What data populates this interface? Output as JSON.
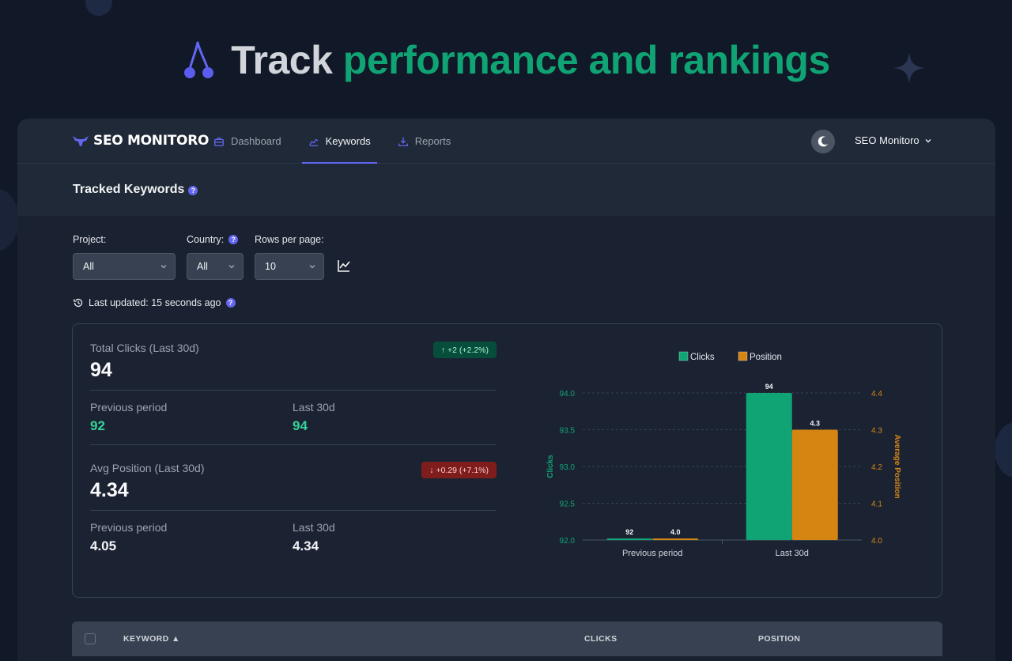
{
  "hero": {
    "word1": "Track",
    "word2": "performance and rankings"
  },
  "nav": {
    "brand": "SEO MONITORO",
    "links": [
      {
        "label": "Dashboard",
        "icon": "briefcase-icon"
      },
      {
        "label": "Keywords",
        "icon": "trend-chart-icon"
      },
      {
        "label": "Reports",
        "icon": "download-icon"
      }
    ],
    "active": "Keywords",
    "account": "SEO Monitoro"
  },
  "page": {
    "title": "Tracked Keywords"
  },
  "filters": {
    "project": {
      "label": "Project:",
      "value": "All"
    },
    "country": {
      "label": "Country:",
      "value": "All"
    },
    "rows": {
      "label": "Rows per page:",
      "value": "10"
    }
  },
  "updated": "Last updated: 15 seconds ago",
  "stats": {
    "clicks": {
      "title": "Total Clicks (Last 30d)",
      "value": "94",
      "trend": "↑ +2 (+2.2%)",
      "prev_label": "Previous period",
      "prev_value": "92",
      "last_label": "Last 30d",
      "last_value": "94"
    },
    "position": {
      "title": "Avg Position (Last 30d)",
      "value": "4.34",
      "trend": "↓ +0.29 (+7.1%)",
      "prev_label": "Previous period",
      "prev_value": "4.05",
      "last_label": "Last 30d",
      "last_value": "4.34"
    }
  },
  "chart_data": {
    "type": "bar",
    "categories": [
      "Previous period",
      "Last 30d"
    ],
    "series": [
      {
        "name": "Clicks",
        "axis": "left",
        "color": "#10a374",
        "values": [
          92,
          94
        ],
        "labels": [
          "92",
          "94"
        ]
      },
      {
        "name": "Position",
        "axis": "right",
        "color": "#d48512",
        "values": [
          4.0,
          4.3
        ],
        "labels": [
          "4.0",
          "4.3"
        ]
      }
    ],
    "ylabel": "Clicks",
    "y2label": "Average Position",
    "ylim": [
      92.0,
      94.0
    ],
    "y2lim": [
      4.0,
      4.4
    ],
    "yticks": [
      "92.0",
      "92.5",
      "93.0",
      "93.5",
      "94.0"
    ],
    "y2ticks": [
      "4.0",
      "4.1",
      "4.2",
      "4.3",
      "4.4"
    ],
    "legend": "top-center"
  },
  "table": {
    "columns": {
      "keyword": "KEYWORD ▲",
      "clicks": "CLICKS",
      "position": "POSITION"
    }
  },
  "colors": {
    "accent": "#6366f1",
    "green": "#10a374",
    "orange": "#d48512"
  }
}
